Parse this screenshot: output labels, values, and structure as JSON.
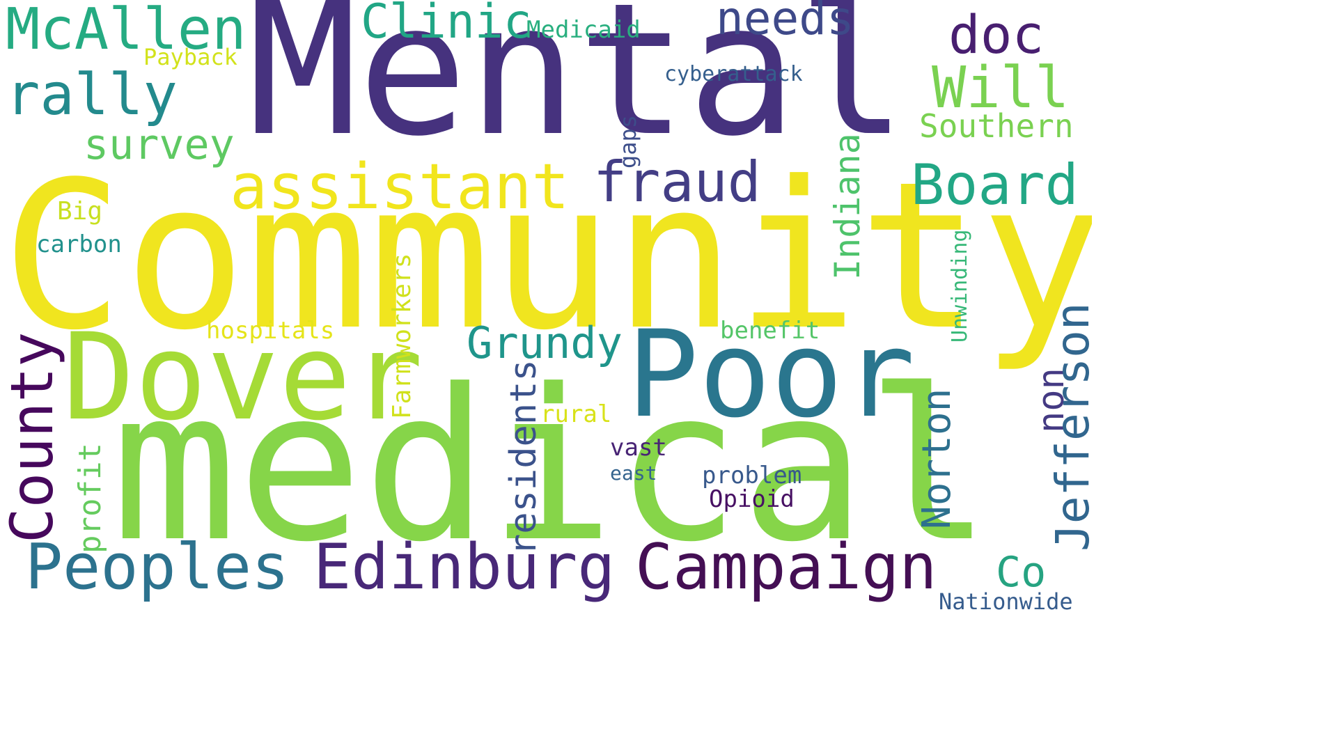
{
  "palette": {
    "dark_purple": "#440154",
    "indigo": "#46327e",
    "blue": "#365c8d",
    "teal_blue": "#277f8e",
    "teal": "#1fa187",
    "green": "#4ac16d",
    "lime": "#a0da39",
    "yellow": "#fde725"
  },
  "words": {
    "community": {
      "text": "Community",
      "color": "#f0e51f"
    },
    "mental": {
      "text": "Mental",
      "color": "#46327e"
    },
    "medical": {
      "text": "medical",
      "color": "#86d549"
    },
    "dover": {
      "text": "Dover",
      "color": "#a5db36"
    },
    "poor": {
      "text": "Poor",
      "color": "#2a768e"
    },
    "mcallen": {
      "text": "McAllen",
      "color": "#25ab82"
    },
    "rally": {
      "text": "rally",
      "color": "#238a8d"
    },
    "survey": {
      "text": "survey",
      "color": "#5ec962"
    },
    "payback": {
      "text": "Payback",
      "color": "#d2e21b"
    },
    "clinic": {
      "text": "Clinic",
      "color": "#21a685"
    },
    "medicaid": {
      "text": "Medicaid",
      "color": "#29af7f"
    },
    "needs": {
      "text": "needs",
      "color": "#3e4989"
    },
    "doc": {
      "text": "doc",
      "color": "#481f70"
    },
    "will": {
      "text": "Will",
      "color": "#7ad151"
    },
    "southern": {
      "text": "Southern",
      "color": "#7ad151"
    },
    "cyberattack": {
      "text": "cyberattack",
      "color": "#355f8d"
    },
    "assistant": {
      "text": "assistant",
      "color": "#f1e51d"
    },
    "fraud": {
      "text": "fraud",
      "color": "#433e85"
    },
    "board": {
      "text": "Board",
      "color": "#22a785"
    },
    "big": {
      "text": "Big",
      "color": "#c8e020"
    },
    "carbon": {
      "text": "carbon",
      "color": "#21918c"
    },
    "grundy": {
      "text": "Grundy",
      "color": "#1f958b"
    },
    "hospitals": {
      "text": "hospitals",
      "color": "#e5e419"
    },
    "benefit": {
      "text": "benefit",
      "color": "#54c568"
    },
    "rural": {
      "text": "rural",
      "color": "#d8e219"
    },
    "vast": {
      "text": "vast",
      "color": "#482475"
    },
    "east": {
      "text": "east",
      "color": "#33638d"
    },
    "problem": {
      "text": "problem",
      "color": "#38598c"
    },
    "opioid": {
      "text": "Opioid",
      "color": "#471063"
    },
    "peoples": {
      "text": "Peoples",
      "color": "#2c728e"
    },
    "edinburg": {
      "text": "Edinburg",
      "color": "#482878"
    },
    "campaign": {
      "text": "Campaign",
      "color": "#440f54"
    },
    "co": {
      "text": "Co",
      "color": "#26a381"
    },
    "nationwide": {
      "text": "Nationwide",
      "color": "#365c8d"
    },
    "county": {
      "text": "County",
      "color": "#46085c"
    },
    "profit": {
      "text": "profit",
      "color": "#65cb5e"
    },
    "residents": {
      "text": "residents",
      "color": "#3b528b"
    },
    "farmworkers": {
      "text": "Farmworkers",
      "color": "#d0e11c"
    },
    "gaps": {
      "text": "gaps",
      "color": "#3d4e8a"
    },
    "indiana": {
      "text": "Indiana",
      "color": "#4ec36b"
    },
    "unwinding": {
      "text": "Unwinding",
      "color": "#37b878"
    },
    "norton": {
      "text": "Norton",
      "color": "#2d708e"
    },
    "non": {
      "text": "non",
      "color": "#443a83"
    },
    "jefferson": {
      "text": "Jefferson",
      "color": "#31668e"
    }
  }
}
